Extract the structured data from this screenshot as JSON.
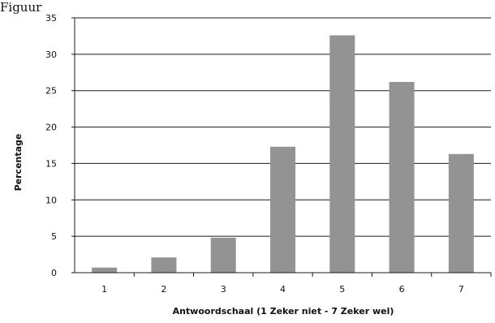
{
  "figure_label": "Figuur",
  "chart_data": {
    "type": "bar",
    "categories": [
      "1",
      "2",
      "3",
      "4",
      "5",
      "6",
      "7"
    ],
    "values": [
      0.7,
      2.1,
      4.8,
      17.3,
      32.6,
      26.2,
      16.3
    ],
    "title": "",
    "xlabel": "Antwoordschaal (1 Zeker niet - 7 Zeker wel)",
    "ylabel": "Percentage",
    "ylim": [
      0,
      35
    ],
    "yticks": [
      0,
      5,
      10,
      15,
      20,
      25,
      30,
      35
    ],
    "grid": true,
    "bar_color": "#939393"
  }
}
